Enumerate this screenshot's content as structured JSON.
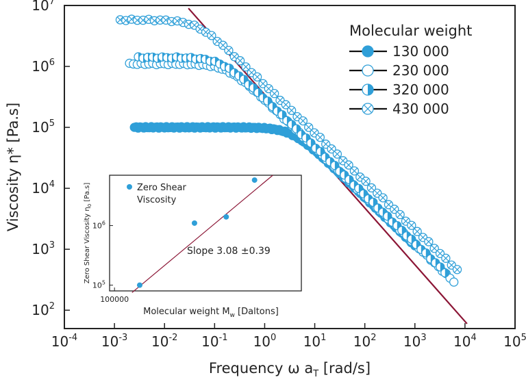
{
  "chart_data": [
    {
      "type": "scatter",
      "xscale": "log",
      "yscale": "log",
      "xlabel": "Frequency ω a_T [rad/s]",
      "xlabel_parts": [
        "Frequency ω a",
        "T",
        " [rad/s]"
      ],
      "ylabel": "Viscosity η* [Pa.s]",
      "xlim": [
        0.0001,
        100000
      ],
      "ylim": [
        50,
        10000000
      ],
      "x_ticks": [
        {
          "value": 0.0001,
          "base": "10",
          "exp": "-4"
        },
        {
          "value": 0.001,
          "base": "10",
          "exp": "-3"
        },
        {
          "value": 0.01,
          "base": "10",
          "exp": "-2"
        },
        {
          "value": 0.1,
          "base": "10",
          "exp": "-1"
        },
        {
          "value": 1,
          "base": "10",
          "exp": "0"
        },
        {
          "value": 10,
          "base": "10",
          "exp": "1"
        },
        {
          "value": 100,
          "base": "10",
          "exp": "2"
        },
        {
          "value": 1000,
          "base": "10",
          "exp": "3"
        },
        {
          "value": 10000,
          "base": "10",
          "exp": "4"
        },
        {
          "value": 100000,
          "base": "10",
          "exp": "5"
        }
      ],
      "y_ticks": [
        {
          "value": 100,
          "base": "10",
          "exp": "2"
        },
        {
          "value": 1000,
          "base": "10",
          "exp": "3"
        },
        {
          "value": 10000,
          "base": "10",
          "exp": "4"
        },
        {
          "value": 100000,
          "base": "10",
          "exp": "5"
        },
        {
          "value": 1000000,
          "base": "10",
          "exp": "6"
        },
        {
          "value": 10000000,
          "base": "10",
          "exp": "7"
        }
      ],
      "legend_title": "Molecular weight",
      "legend_position": "top-right",
      "series": [
        {
          "name": "130 000",
          "marker": "filled-circle",
          "color": "#2f9fd8",
          "eta0": 100000,
          "wc": 3.5,
          "xmin": 0.0025,
          "xmax": 1000,
          "npoints": 150
        },
        {
          "name": "230 000",
          "marker": "open-circle",
          "color": "#2f9fd8",
          "eta0": 1100000,
          "wc": 0.18,
          "xmin": 0.002,
          "xmax": 6000,
          "npoints": 85
        },
        {
          "name": "320 000",
          "marker": "half-circle",
          "color": "#2f9fd8",
          "eta0": 1400000,
          "wc": 0.14,
          "xmin": 0.003,
          "xmax": 4000,
          "npoints": 65
        },
        {
          "name": "430 000",
          "marker": "crossed-circle",
          "color": "#2f9fd8",
          "eta0": 5800000,
          "wc": 0.045,
          "xmin": 0.0013,
          "xmax": 7000,
          "npoints": 60
        }
      ],
      "reference_line": {
        "color": "#8b1535",
        "x": [
          0.03,
          11000
        ],
        "y": [
          9000000,
          60
        ]
      }
    },
    {
      "type": "scatter",
      "inset": true,
      "xscale": "log",
      "yscale": "log",
      "xlabel": "Molecular weight M_w [Daltons]",
      "xlabel_parts": [
        "Molecular weight M",
        "w",
        " [Daltons]"
      ],
      "ylabel": "Zero Shear Viscosity η_0 [Pa.s]",
      "ylabel_parts": [
        "Zero Shear Viscosity η",
        "0",
        " [Pa.s]"
      ],
      "xlim": [
        95000,
        700000
      ],
      "ylim": [
        80000,
        7000000
      ],
      "x_ticks": [
        {
          "value": 100000,
          "label": "100000"
        }
      ],
      "y_ticks": [
        {
          "value": 100000,
          "base": "10",
          "exp": "5"
        },
        {
          "value": 1000000,
          "base": "10",
          "exp": "6"
        }
      ],
      "legend": [
        "Zero Shear",
        "Viscosity"
      ],
      "series": [
        {
          "name": "Zero Shear Viscosity",
          "color": "#2f9fd8",
          "points": [
            {
              "x": 130000,
              "y": 100000
            },
            {
              "x": 230000,
              "y": 1100000
            },
            {
              "x": 320000,
              "y": 1400000
            },
            {
              "x": 430000,
              "y": 5800000
            }
          ]
        }
      ],
      "fit_line": {
        "color": "#8b1535",
        "slope": 3.08,
        "x": [
          120000,
          520000
        ],
        "y": [
          75000,
          7000000
        ]
      },
      "annotation": "Slope 3.08 ±0.39"
    }
  ]
}
